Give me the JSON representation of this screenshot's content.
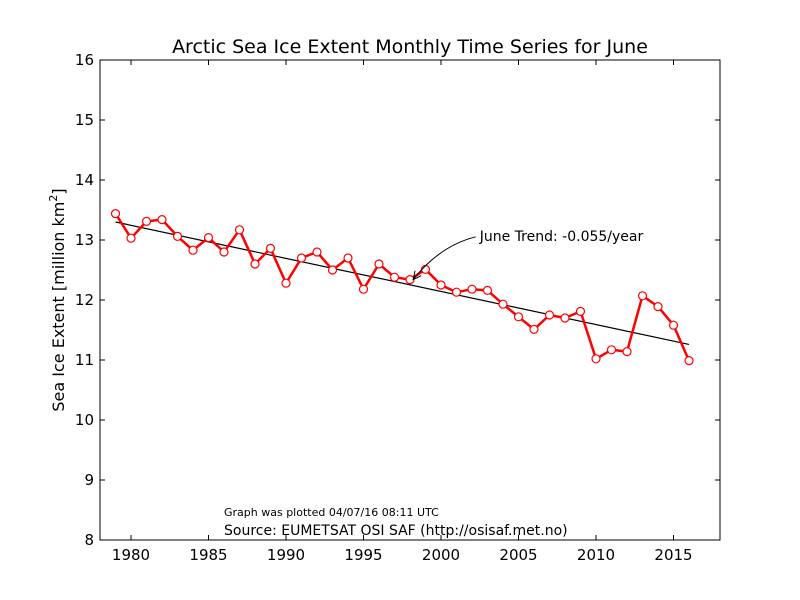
{
  "chart_data": {
    "type": "line",
    "title": "Arctic Sea Ice Extent Monthly Time Series for June",
    "xlabel": "",
    "ylabel_main": "Sea Ice Extent [million km",
    "ylabel_sup": "2",
    "ylabel_end": "]",
    "xlim": [
      1978,
      2018
    ],
    "ylim": [
      8,
      16
    ],
    "xticks": [
      1980,
      1985,
      1990,
      1995,
      2000,
      2005,
      2010,
      2015
    ],
    "yticks": [
      8,
      9,
      10,
      11,
      12,
      13,
      14,
      15,
      16
    ],
    "grid": false,
    "series_color": "#ff0000",
    "trend_color": "#000000",
    "x": [
      1979,
      1980,
      1981,
      1982,
      1983,
      1984,
      1985,
      1986,
      1987,
      1988,
      1989,
      1990,
      1991,
      1992,
      1993,
      1994,
      1995,
      1996,
      1997,
      1998,
      1999,
      2000,
      2001,
      2002,
      2003,
      2004,
      2005,
      2006,
      2007,
      2008,
      2009,
      2010,
      2011,
      2012,
      2013,
      2014,
      2015,
      2016
    ],
    "values": [
      13.44,
      13.03,
      13.31,
      13.34,
      13.06,
      12.83,
      13.04,
      12.8,
      13.17,
      12.6,
      12.86,
      12.28,
      12.7,
      12.8,
      12.5,
      12.7,
      12.18,
      12.6,
      12.38,
      12.34,
      12.51,
      12.25,
      12.13,
      12.18,
      12.16,
      11.93,
      11.72,
      11.51,
      11.75,
      11.7,
      11.81,
      11.02,
      11.17,
      11.14,
      12.07,
      11.89,
      11.58,
      10.99
    ],
    "trend": {
      "x": [
        1979,
        2016
      ],
      "y": [
        13.3,
        11.26
      ]
    },
    "annotation": {
      "text": "June Trend: -0.055/year",
      "text_x": 2002.5,
      "text_y": 13.07,
      "arrow_to_x": 1998.2,
      "arrow_to_y": 12.34
    },
    "footer": {
      "plotted": "Graph was plotted 04/07/16 08:11 UTC",
      "source": "Source: EUMETSAT OSI SAF (http://osisaf.met.no)"
    }
  }
}
